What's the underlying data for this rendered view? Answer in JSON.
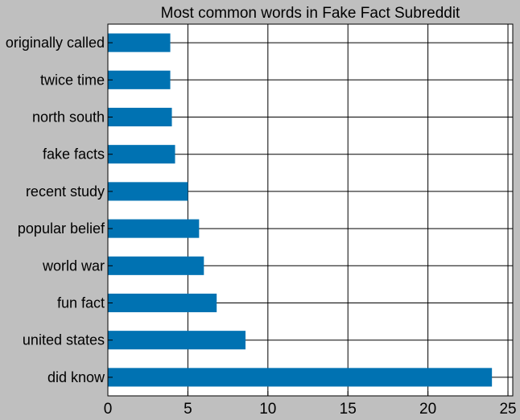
{
  "chart_data": {
    "type": "bar",
    "orientation": "horizontal",
    "title": "Most common words in Fake Fact Subreddit",
    "xlabel": "",
    "ylabel": "",
    "xlim": [
      0,
      25.3
    ],
    "xticks": [
      0,
      5,
      10,
      15,
      20,
      25
    ],
    "grid": true,
    "categories": [
      "did know",
      "united states",
      "fun fact",
      "world war",
      "popular belief",
      "recent study",
      "fake facts",
      "north south",
      "twice time",
      "originally called"
    ],
    "values": [
      24,
      8.6,
      6.8,
      6.0,
      5.7,
      5.0,
      4.2,
      4.0,
      3.9,
      3.9
    ],
    "colors": {
      "bar": "#0072b2",
      "plot_background": "#ffffff",
      "figure_background": "#bfbfbf",
      "grid": "#000000"
    }
  }
}
